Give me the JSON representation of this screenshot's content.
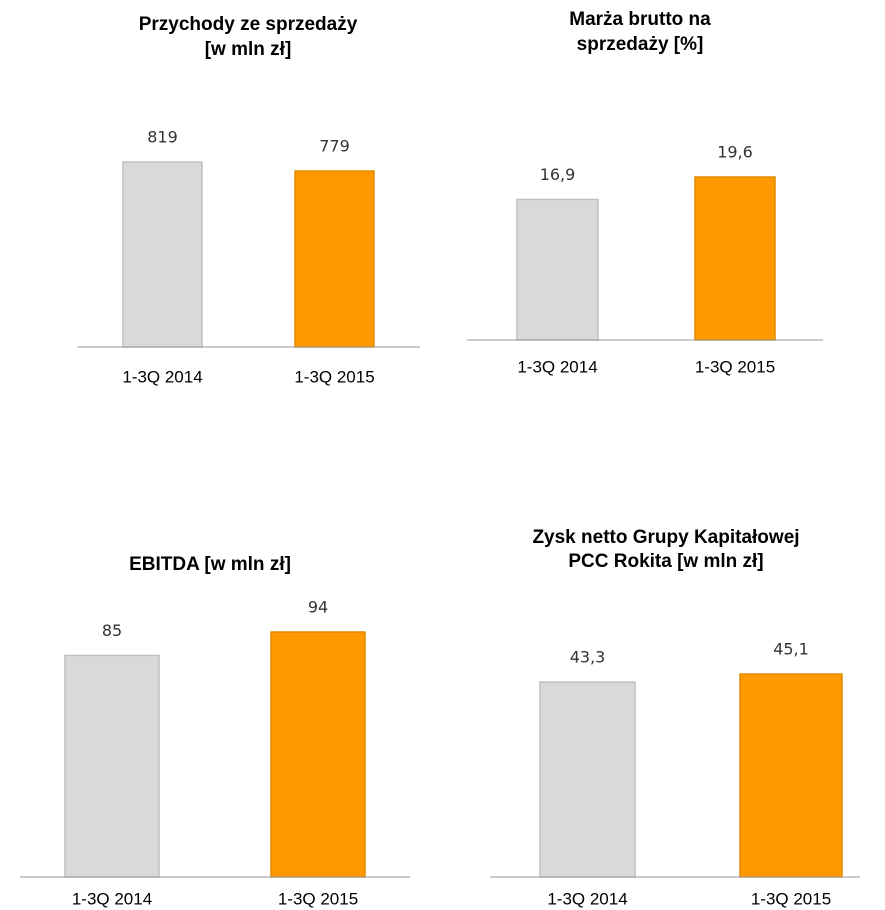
{
  "chart_data": [
    {
      "type": "bar",
      "title": [
        "Przychody ze sprzedaży",
        "[w mln zł]"
      ],
      "categories": [
        "1-3Q 2014",
        "1-3Q 2015"
      ],
      "values": [
        819,
        779
      ],
      "colors": [
        "#d9d9d9",
        "#ff9900"
      ]
    },
    {
      "type": "bar",
      "title": [
        "Marża brutto na",
        "sprzedaży [%]"
      ],
      "categories": [
        "1-3Q 2014",
        "1-3Q 2015"
      ],
      "values": [
        16.9,
        19.6
      ],
      "value_labels": [
        "16,9",
        "19,6"
      ],
      "colors": [
        "#d9d9d9",
        "#ff9900"
      ]
    },
    {
      "type": "bar",
      "title": [
        "EBITDA [w mln zł]"
      ],
      "categories": [
        "1-3Q 2014",
        "1-3Q 2015"
      ],
      "values": [
        85,
        94
      ],
      "colors": [
        "#d9d9d9",
        "#ff9900"
      ]
    },
    {
      "type": "bar",
      "title": [
        "Zysk netto Grupy Kapitałowej",
        "PCC Rokita [w mln zł]"
      ],
      "categories": [
        "1-3Q 2014",
        "1-3Q 2015"
      ],
      "values": [
        43.3,
        45.1
      ],
      "value_labels": [
        "43,3",
        "45,1"
      ],
      "colors": [
        "#d9d9d9",
        "#ff9900"
      ]
    }
  ]
}
